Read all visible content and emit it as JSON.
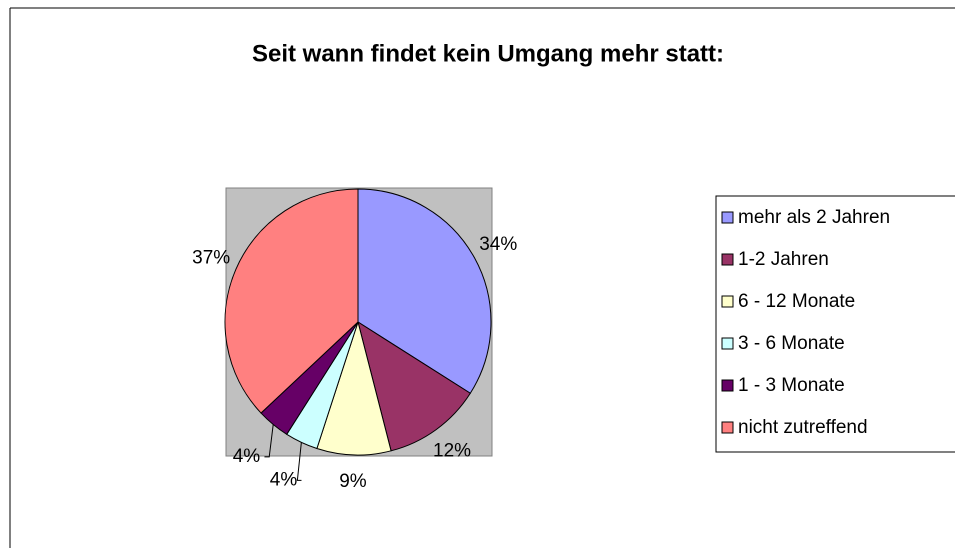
{
  "chart_data": {
    "type": "pie",
    "title": "Seit wann findet kein Umgang mehr statt:",
    "categories": [
      "mehr als 2 Jahren",
      "1-2 Jahren",
      "6 - 12 Monate",
      "3 - 6 Monate",
      "1 - 3 Monate",
      "nicht zutreffend"
    ],
    "values": [
      34,
      12,
      9,
      4,
      4,
      37
    ],
    "value_labels": [
      "34%",
      "12%",
      "9%",
      "4%",
      "4%",
      "37%"
    ],
    "colors": [
      "#9999ff",
      "#993366",
      "#ffffcc",
      "#ccffff",
      "#660066",
      "#ff8080"
    ],
    "legend": "right"
  }
}
